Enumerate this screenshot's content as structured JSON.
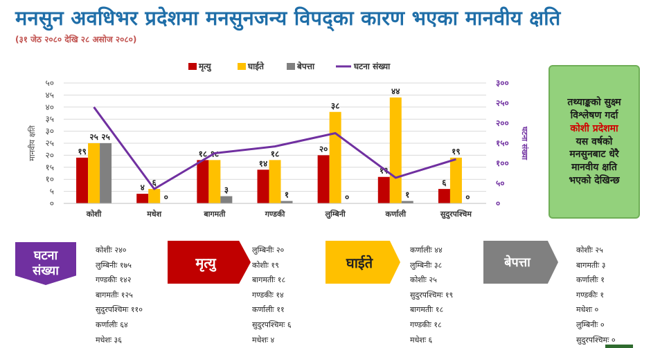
{
  "title": "मनसुन अवधिभर प्रदेशमा मनसुनजन्य विपद्का कारण भएका मानवीय क्षति",
  "subtitle": "(३१ जेठ २०८० देखि २८ असोज २०८०)",
  "chart_data": {
    "type": "bar",
    "categories": [
      "कोशी",
      "मधेश",
      "बागमती",
      "गण्डकी",
      "लुम्बिनी",
      "कर्णाली",
      "सुदुरपश्चिम"
    ],
    "series": [
      {
        "name": "मृत्यु",
        "type": "bar",
        "color": "#c00000",
        "values": [
          19,
          4,
          18,
          14,
          20,
          11,
          6
        ],
        "labels": [
          "१९",
          "४",
          "१८",
          "१४",
          "२०",
          "११",
          "६"
        ]
      },
      {
        "name": "घाईते",
        "type": "bar",
        "color": "#ffc000",
        "values": [
          25,
          6,
          18,
          18,
          38,
          44,
          19
        ],
        "labels": [
          "२५",
          "६",
          "१८",
          "१८",
          "३८",
          "४४",
          "१९"
        ]
      },
      {
        "name": "बेपत्ता",
        "type": "bar",
        "color": "#808080",
        "values": [
          25,
          0,
          3,
          1,
          0,
          1,
          0
        ],
        "labels": [
          "२५",
          "०",
          "३",
          "१",
          "०",
          "१",
          "०"
        ]
      },
      {
        "name": "घटना संख्या",
        "type": "line",
        "axis": "right",
        "color": "#7030a0",
        "values": [
          240,
          36,
          125,
          142,
          175,
          64,
          110
        ]
      }
    ],
    "ylabel": "मानवीय क्षति",
    "ylabel_right": "घटना संख्या",
    "ylim": [
      0,
      50
    ],
    "ylim_right": [
      0,
      300
    ],
    "yticks": [
      "०",
      "५",
      "१०",
      "१५",
      "२०",
      "२५",
      "३०",
      "३५",
      "४०",
      "४५",
      "५०"
    ],
    "yticks_right": [
      "०",
      "५०",
      "१००",
      "१५०",
      "२००",
      "२५०",
      "३००"
    ],
    "legend": "top",
    "grid": true
  },
  "note": {
    "line1": "तथ्याङ्कको सुक्ष्म",
    "line2": "विश्लेषण गर्दा",
    "highlight": "कोशी प्रदेशमा",
    "line3": "यस वर्षको",
    "line4": "मनसुनबाट धेरै",
    "line5": "मानवीय क्षति",
    "line6": "भएको देखिन्छ"
  },
  "panels": [
    {
      "label": "घटना संख्या",
      "color": "#7030a0",
      "items": [
        "कोशीः २४०",
        "लुम्बिनीः १७५",
        "गण्डकीः १४२",
        "बागमतीः १२५",
        "सुदुरपश्चिमः ११०",
        "कर्णालीः ६४",
        "मधेशः ३६"
      ]
    },
    {
      "label": "मृत्यु",
      "color": "#c00000",
      "items": [
        "लुम्बिनीः २०",
        "कोशीः १९",
        "बागमतीः १८",
        "गण्डकीः १४",
        "कर्णालीः ११",
        "सुदुरपश्चिमः ६",
        "मधेशः ४"
      ]
    },
    {
      "label": "घाईते",
      "color": "#ffc000",
      "items": [
        "कर्णालीः ४४",
        "लुम्बिनीः ३८",
        "कोशीः २५",
        "सुदुरपश्चिमः १९",
        "बागमतीः १८",
        "गण्डकीः १८",
        "मधेशः ६"
      ]
    },
    {
      "label": "बेपत्ता",
      "color": "#808080",
      "items": [
        "कोशीः २५",
        "बागमतीः ३",
        "कर्णालीः १",
        "गण्डकीः १",
        "मधेशः ०",
        "लुम्बिनीः ०",
        "सुदुरपश्चिमः ०"
      ]
    }
  ]
}
